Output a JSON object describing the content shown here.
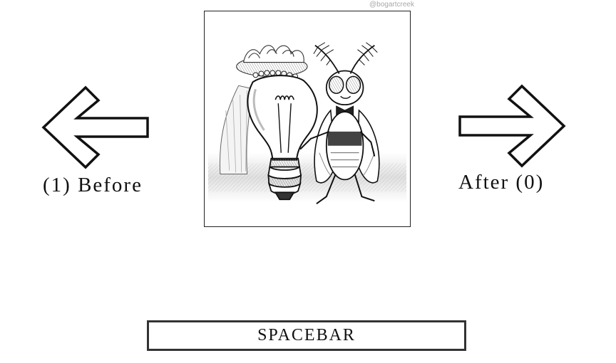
{
  "navigation": {
    "before_label": "(1) Before",
    "after_label": "After (0)",
    "left_arrow_icon": "left-arrow-icon",
    "right_arrow_icon": "right-arrow-icon"
  },
  "artwork": {
    "credit": "@bogartcreek",
    "subject": "cartoon-lightbulb-bride-and-moth-groom"
  },
  "controls": {
    "spacebar_label": "SPACEBAR"
  },
  "colors": {
    "outline": "#111111",
    "background": "#ffffff",
    "credit_text": "#a8a8a8"
  }
}
